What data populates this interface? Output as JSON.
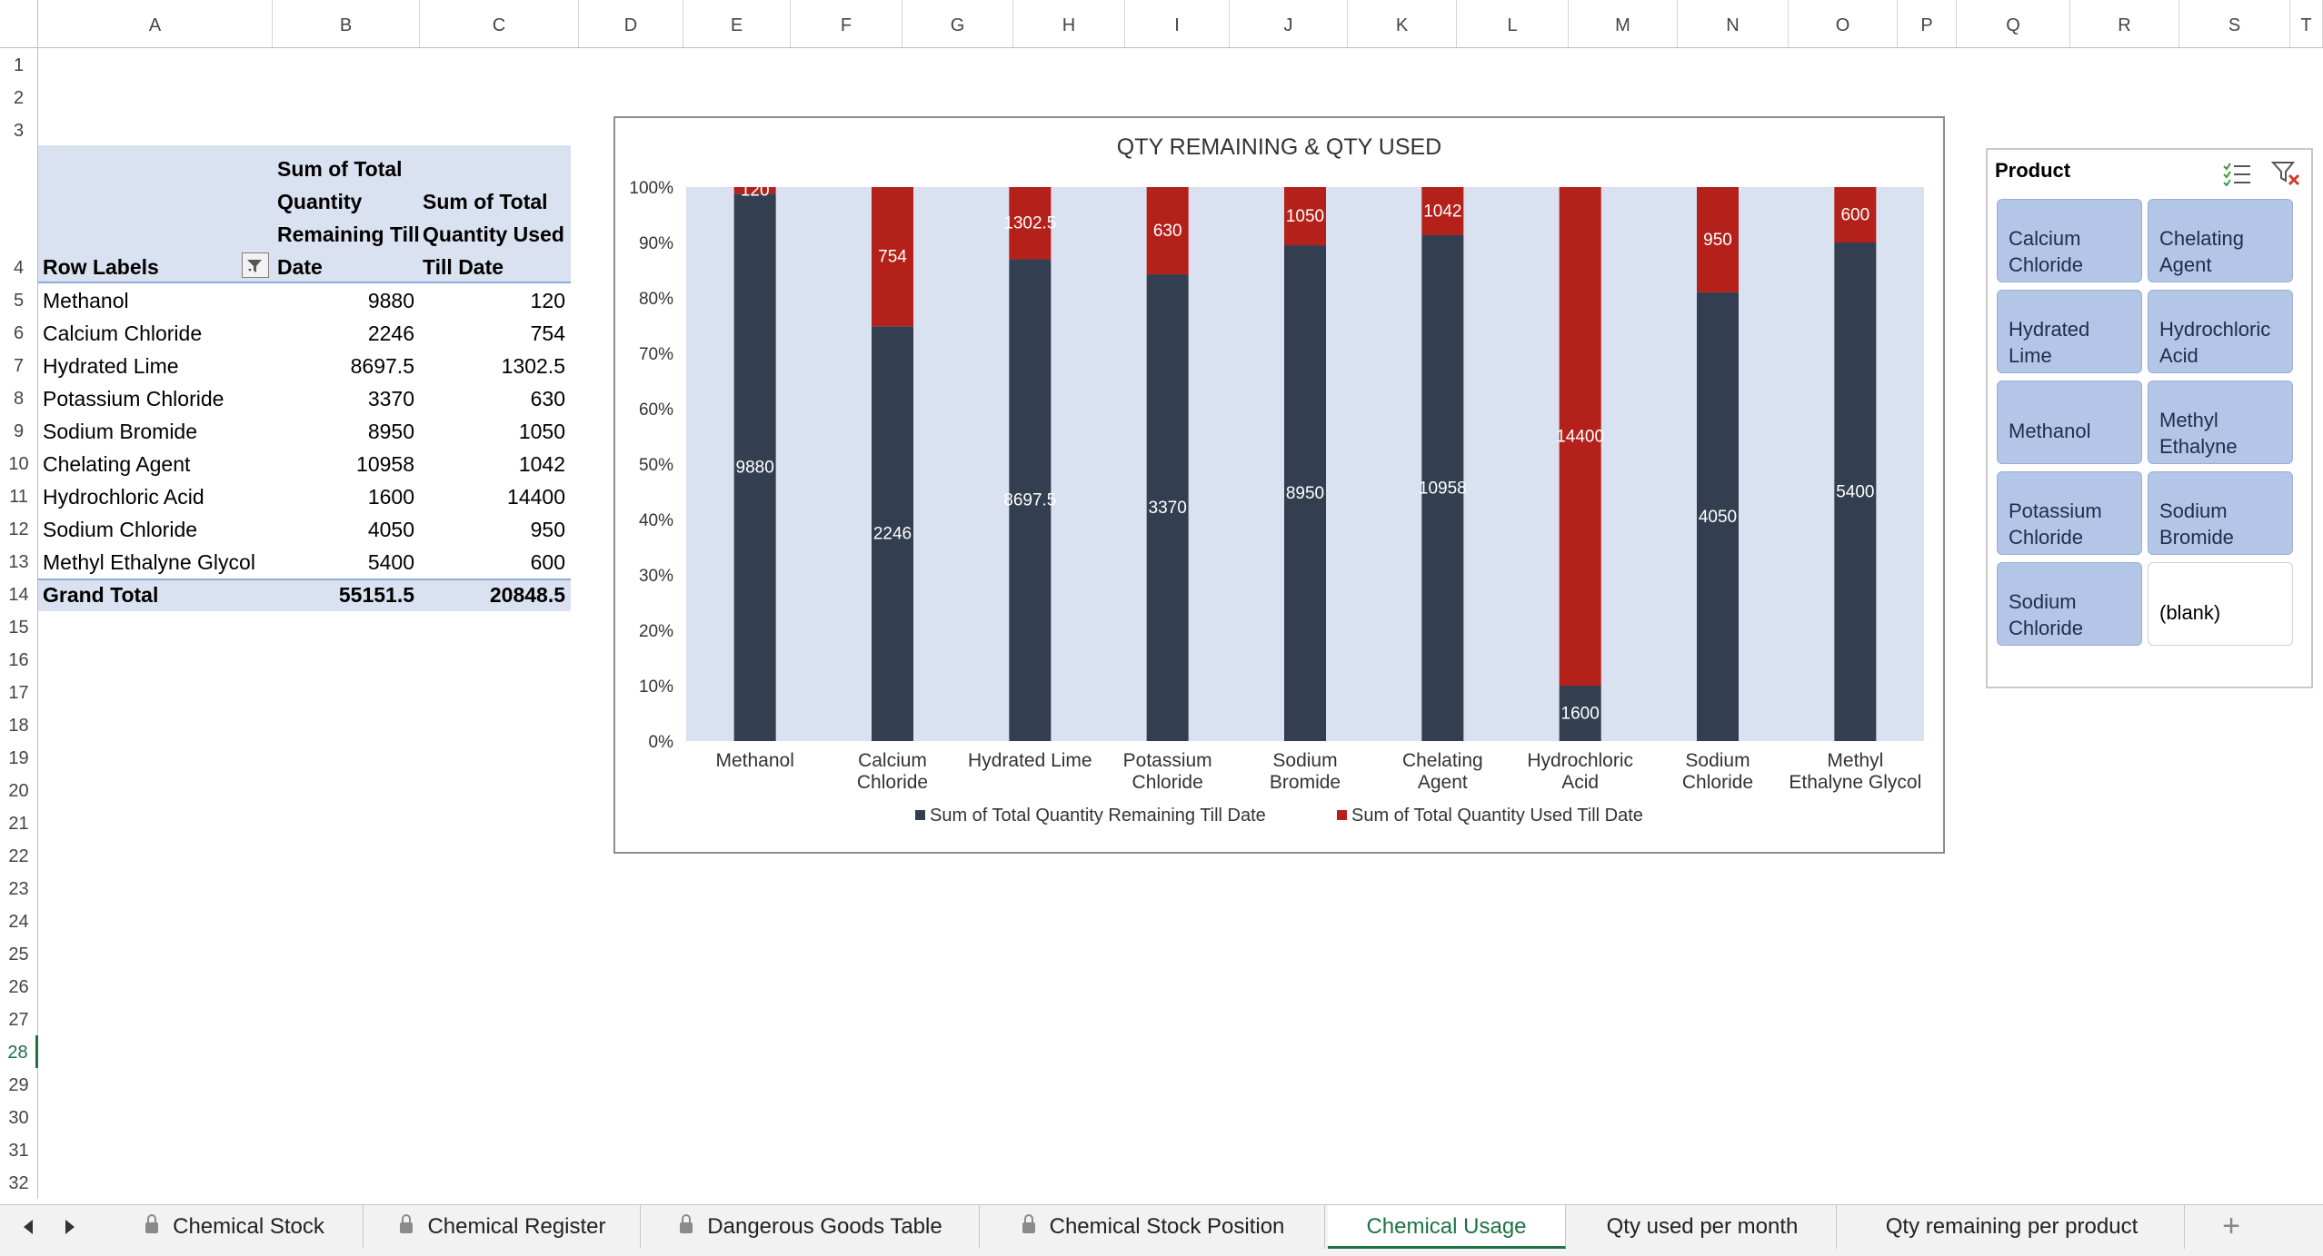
{
  "columns": [
    "A",
    "B",
    "C",
    "D",
    "E",
    "F",
    "G",
    "H",
    "I",
    "J",
    "K",
    "L",
    "M",
    "N",
    "O",
    "P",
    "Q",
    "R",
    "S",
    "T"
  ],
  "rows": [
    "1",
    "2",
    "3",
    "4",
    "5",
    "6",
    "7",
    "8",
    "9",
    "10",
    "11",
    "12",
    "13",
    "14",
    "15",
    "16",
    "17",
    "18",
    "19",
    "20",
    "21",
    "22",
    "23",
    "24",
    "25",
    "26",
    "27",
    "28",
    "29",
    "30",
    "31",
    "32"
  ],
  "active_row": "28",
  "pivot": {
    "header_row_labels": "Row Labels",
    "header_remaining": "Sum of Total Quantity Remaining Till Date",
    "header_remaining_lines": [
      "Sum of Total",
      "Quantity",
      "Remaining Till",
      "Date"
    ],
    "header_used_lines": [
      "Sum of Total",
      "Quantity Used",
      "Till Date"
    ],
    "rows": [
      {
        "label": "Methanol",
        "remaining": "9880",
        "used": "120"
      },
      {
        "label": "Calcium Chloride",
        "remaining": "2246",
        "used": "754"
      },
      {
        "label": "Hydrated Lime",
        "remaining": "8697.5",
        "used": "1302.5"
      },
      {
        "label": "Potassium Chloride",
        "remaining": "3370",
        "used": "630"
      },
      {
        "label": "Sodium Bromide",
        "remaining": "8950",
        "used": "1050"
      },
      {
        "label": "Chelating Agent",
        "remaining": "10958",
        "used": "1042"
      },
      {
        "label": "Hydrochloric Acid",
        "remaining": "1600",
        "used": "14400"
      },
      {
        "label": "Sodium Chloride",
        "remaining": "4050",
        "used": "950"
      },
      {
        "label": "Methyl Ethalyne Glycol",
        "remaining": "5400",
        "used": "600"
      }
    ],
    "grand_total_label": "Grand Total",
    "grand_total_remaining": "55151.5",
    "grand_total_used": "20848.5"
  },
  "chart_data": {
    "type": "bar",
    "stacked": "100%",
    "title": "QTY REMAINING & QTY USED",
    "categories": [
      "Methanol",
      "Calcium Chloride",
      "Hydrated Lime",
      "Potassium Chloride",
      "Sodium Bromide",
      "Chelating Agent",
      "Hydrochloric Acid",
      "Sodium Chloride",
      "Methyl Ethalyne Glycol"
    ],
    "category_lines": [
      [
        "Methanol"
      ],
      [
        "Calcium",
        "Chloride"
      ],
      [
        "Hydrated Lime"
      ],
      [
        "Potassium",
        "Chloride"
      ],
      [
        "Sodium",
        "Bromide"
      ],
      [
        "Chelating",
        "Agent"
      ],
      [
        "Hydrochloric",
        "Acid"
      ],
      [
        "Sodium",
        "Chloride"
      ],
      [
        "Methyl",
        "Ethalyne Glycol"
      ]
    ],
    "series": [
      {
        "name": "Sum of Total Quantity Remaining Till Date",
        "color": "#333f50",
        "values": [
          9880,
          2246,
          8697.5,
          3370,
          8950,
          10958,
          1600,
          4050,
          5400
        ]
      },
      {
        "name": "Sum of Total Quantity Used Till Date",
        "color": "#b4211a",
        "values": [
          120,
          754,
          1302.5,
          630,
          1050,
          1042,
          14400,
          950,
          600
        ]
      }
    ],
    "y_ticks": [
      "0%",
      "10%",
      "20%",
      "30%",
      "40%",
      "50%",
      "60%",
      "70%",
      "80%",
      "90%",
      "100%"
    ],
    "ylim": [
      0,
      100
    ],
    "plot_background": "#dae1f0",
    "legend_position": "bottom"
  },
  "slicer": {
    "title": "Product",
    "items": [
      {
        "label": "Calcium\nChloride",
        "selected": true
      },
      {
        "label": "Chelating\nAgent",
        "selected": true
      },
      {
        "label": "Hydrated\nLime",
        "selected": true
      },
      {
        "label": "Hydrochloric\nAcid",
        "selected": true
      },
      {
        "label": "Methanol",
        "selected": true
      },
      {
        "label": "Methyl\nEthalyne",
        "selected": true
      },
      {
        "label": "Potassium\nChloride",
        "selected": true
      },
      {
        "label": "Sodium\nBromide",
        "selected": true
      },
      {
        "label": "Sodium\nChloride",
        "selected": true
      },
      {
        "label": "(blank)",
        "selected": false
      }
    ]
  },
  "tabs": [
    {
      "label": "Chemical Stock",
      "locked": true,
      "active": false
    },
    {
      "label": "Chemical Register",
      "locked": true,
      "active": false
    },
    {
      "label": "Dangerous Goods Table",
      "locked": true,
      "active": false
    },
    {
      "label": "Chemical Stock Position",
      "locked": true,
      "active": false
    },
    {
      "label": "Chemical Usage",
      "locked": false,
      "active": true
    },
    {
      "label": "Qty used per month",
      "locked": false,
      "active": false
    },
    {
      "label": "Qty remaining per product",
      "locked": false,
      "active": false
    }
  ],
  "add_sheet_label": "+",
  "colors": {
    "accent": "#1e7145",
    "pivot_header": "#dae1f0"
  }
}
